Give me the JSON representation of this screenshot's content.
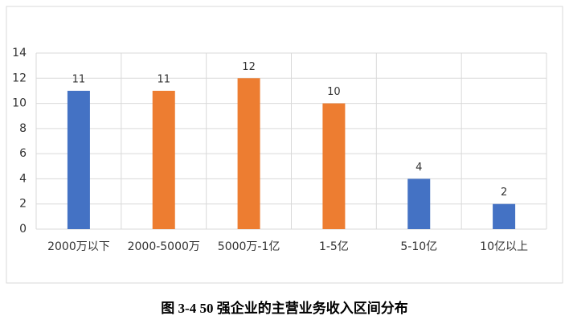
{
  "chart_data": {
    "type": "bar",
    "title": "图 3-4 50 强企业的主营业务收入区间分布",
    "categories": [
      "2000万以下",
      "2000-5000万",
      "5000万-1亿",
      "1-5亿",
      "5-10亿",
      "10亿以上"
    ],
    "values": [
      11,
      11,
      12,
      10,
      4,
      2
    ],
    "colors": [
      "#4472c4",
      "#ed7d31",
      "#ed7d31",
      "#ed7d31",
      "#4472c4",
      "#4472c4"
    ],
    "ylim": [
      0,
      14
    ],
    "yticks": [
      0,
      2,
      4,
      6,
      8,
      10,
      12,
      14
    ],
    "grid": true
  }
}
